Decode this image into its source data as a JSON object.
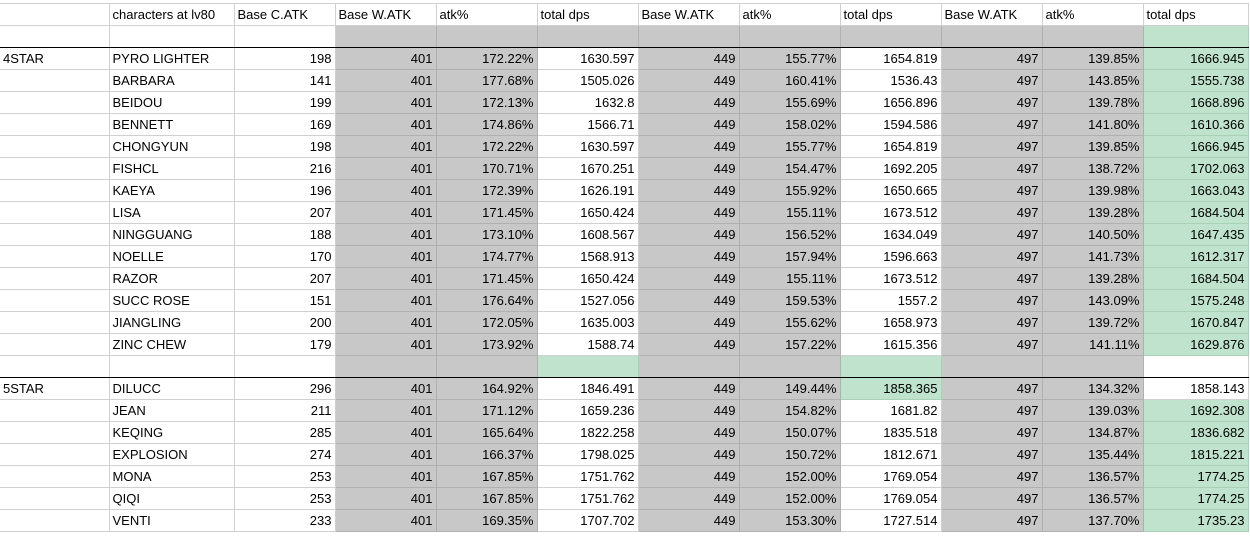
{
  "colors": {
    "grey": "#c8c8c8",
    "green": "#bfe3cc"
  },
  "header": {
    "c0": "",
    "characters": "characters at lv80",
    "base_catk": "Base C.ATK",
    "g1_watk": "Base W.ATK",
    "g1_atk": "atk%",
    "g1_dps": "total dps",
    "g2_watk": "Base W.ATK",
    "g2_atk": "atk%",
    "g2_dps": "total dps",
    "g3_watk": "Base W.ATK",
    "g3_atk": "atk%",
    "g3_dps": "total dps"
  },
  "groups": [
    {
      "label": "4STAR",
      "rows": [
        [
          "PYRO LIGHTER",
          "198",
          "401",
          "172.22%",
          "1630.597",
          "449",
          "155.77%",
          "1654.819",
          "497",
          "139.85%",
          "1666.945"
        ],
        [
          "BARBARA",
          "141",
          "401",
          "177.68%",
          "1505.026",
          "449",
          "160.41%",
          "1536.43",
          "497",
          "143.85%",
          "1555.738"
        ],
        [
          "BEIDOU",
          "199",
          "401",
          "172.13%",
          "1632.8",
          "449",
          "155.69%",
          "1656.896",
          "497",
          "139.78%",
          "1668.896"
        ],
        [
          "BENNETT",
          "169",
          "401",
          "174.86%",
          "1566.71",
          "449",
          "158.02%",
          "1594.586",
          "497",
          "141.80%",
          "1610.366"
        ],
        [
          "CHONGYUN",
          "198",
          "401",
          "172.22%",
          "1630.597",
          "449",
          "155.77%",
          "1654.819",
          "497",
          "139.85%",
          "1666.945"
        ],
        [
          "FISHCL",
          "216",
          "401",
          "170.71%",
          "1670.251",
          "449",
          "154.47%",
          "1692.205",
          "497",
          "138.72%",
          "1702.063"
        ],
        [
          "KAEYA",
          "196",
          "401",
          "172.39%",
          "1626.191",
          "449",
          "155.92%",
          "1650.665",
          "497",
          "139.98%",
          "1663.043"
        ],
        [
          "LISA",
          "207",
          "401",
          "171.45%",
          "1650.424",
          "449",
          "155.11%",
          "1673.512",
          "497",
          "139.28%",
          "1684.504"
        ],
        [
          "NINGGUANG",
          "188",
          "401",
          "173.10%",
          "1608.567",
          "449",
          "156.52%",
          "1634.049",
          "497",
          "140.50%",
          "1647.435"
        ],
        [
          "NOELLE",
          "170",
          "401",
          "174.77%",
          "1568.913",
          "449",
          "157.94%",
          "1596.663",
          "497",
          "141.73%",
          "1612.317"
        ],
        [
          "RAZOR",
          "207",
          "401",
          "171.45%",
          "1650.424",
          "449",
          "155.11%",
          "1673.512",
          "497",
          "139.28%",
          "1684.504"
        ],
        [
          "SUCC ROSE",
          "151",
          "401",
          "176.64%",
          "1527.056",
          "449",
          "159.53%",
          "1557.2",
          "497",
          "143.09%",
          "1575.248"
        ],
        [
          "JIANGLING",
          "200",
          "401",
          "172.05%",
          "1635.003",
          "449",
          "155.62%",
          "1658.973",
          "497",
          "139.72%",
          "1670.847"
        ],
        [
          "ZINC CHEW",
          "179",
          "401",
          "173.92%",
          "1588.74",
          "449",
          "157.22%",
          "1615.356",
          "497",
          "141.11%",
          "1629.876"
        ]
      ]
    },
    {
      "label": "5STAR",
      "rows": [
        [
          "DILUCC",
          "296",
          "401",
          "164.92%",
          "1846.491",
          "449",
          "149.44%",
          "1858.365",
          "497",
          "134.32%",
          "1858.143"
        ],
        [
          "JEAN",
          "211",
          "401",
          "171.12%",
          "1659.236",
          "449",
          "154.82%",
          "1681.82",
          "497",
          "139.03%",
          "1692.308"
        ],
        [
          "KEQING",
          "285",
          "401",
          "165.64%",
          "1822.258",
          "449",
          "150.07%",
          "1835.518",
          "497",
          "134.87%",
          "1836.682"
        ],
        [
          "EXPLOSION",
          "274",
          "401",
          "166.37%",
          "1798.025",
          "449",
          "150.72%",
          "1812.671",
          "497",
          "135.44%",
          "1815.221"
        ],
        [
          "MONA",
          "253",
          "401",
          "167.85%",
          "1751.762",
          "449",
          "152.00%",
          "1769.054",
          "497",
          "136.57%",
          "1774.25"
        ],
        [
          "QIQI",
          "253",
          "401",
          "167.85%",
          "1751.762",
          "449",
          "152.00%",
          "1769.054",
          "497",
          "136.57%",
          "1774.25"
        ],
        [
          "VENTI",
          "233",
          "401",
          "169.35%",
          "1707.702",
          "449",
          "153.30%",
          "1727.514",
          "497",
          "137.70%",
          "1735.23"
        ]
      ]
    }
  ]
}
